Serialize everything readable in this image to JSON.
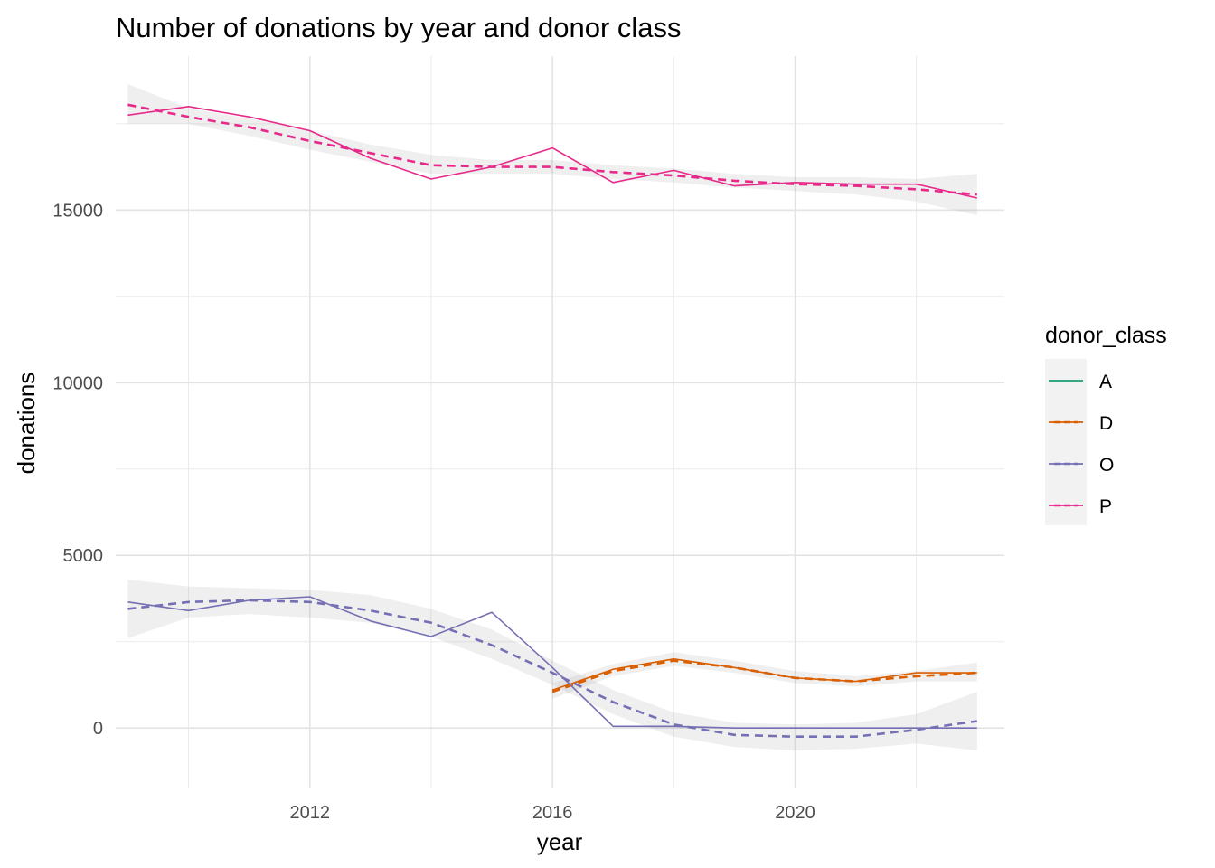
{
  "chart_data": {
    "type": "line",
    "title": "Number of donations by year and donor class",
    "xlabel": "year",
    "ylabel": "donations",
    "xlim": [
      2008.8,
      2023.45
    ],
    "ylim": [
      -1750,
      19460
    ],
    "x_ticks": [
      2012,
      2016,
      2020
    ],
    "x_minor": [
      2010,
      2014,
      2018,
      2022
    ],
    "y_ticks": [
      0,
      5000,
      10000,
      15000
    ],
    "y_minor": [
      2500,
      7500,
      12500,
      17500
    ],
    "grid": true,
    "legend": {
      "title": "donor_class",
      "position": "right",
      "entries": [
        {
          "label": "A",
          "color": "#1b9e77"
        },
        {
          "label": "D",
          "color": "#d95f02"
        },
        {
          "label": "O",
          "color": "#7570b3"
        },
        {
          "label": "P",
          "color": "#e7298a"
        }
      ]
    },
    "series": [
      {
        "name": "D",
        "color": "#d95f02",
        "x": [
          2016,
          2017,
          2018,
          2019,
          2020,
          2021,
          2022,
          2023
        ],
        "values": [
          1100,
          1700,
          2000,
          1750,
          1450,
          1350,
          1600,
          1600
        ],
        "smooth": [
          1050,
          1650,
          1950,
          1750,
          1450,
          1350,
          1500,
          1600
        ],
        "ci_lower": [
          850,
          1500,
          1800,
          1600,
          1300,
          1200,
          1350,
          1350
        ],
        "ci_upper": [
          1300,
          1850,
          2200,
          1950,
          1650,
          1500,
          1650,
          1900
        ]
      },
      {
        "name": "O",
        "color": "#7570b3",
        "x": [
          2009,
          2010,
          2011,
          2012,
          2013,
          2014,
          2015,
          2016,
          2017,
          2018,
          2019,
          2020,
          2021,
          2022,
          2023
        ],
        "values": [
          3650,
          3400,
          3700,
          3800,
          3100,
          2650,
          3350,
          1750,
          50,
          50,
          0,
          0,
          0,
          0,
          0
        ],
        "smooth": [
          3450,
          3650,
          3700,
          3650,
          3400,
          3050,
          2400,
          1600,
          750,
          100,
          -200,
          -250,
          -250,
          -50,
          200
        ],
        "ci_lower": [
          2600,
          3200,
          3300,
          3200,
          3050,
          2650,
          2000,
          1250,
          400,
          -250,
          -550,
          -650,
          -600,
          -450,
          -650
        ],
        "ci_upper": [
          4300,
          4100,
          4050,
          4000,
          3850,
          3450,
          2850,
          1950,
          1100,
          450,
          150,
          100,
          150,
          400,
          1050
        ]
      },
      {
        "name": "P",
        "color": "#e7298a",
        "x": [
          2009,
          2010,
          2011,
          2012,
          2013,
          2014,
          2015,
          2016,
          2017,
          2018,
          2019,
          2020,
          2021,
          2022,
          2023
        ],
        "values": [
          17750,
          18000,
          17700,
          17300,
          16500,
          15900,
          16250,
          16800,
          15800,
          16150,
          15700,
          15800,
          15750,
          15750,
          15350
        ],
        "smooth": [
          18050,
          17700,
          17400,
          17000,
          16650,
          16300,
          16250,
          16250,
          16100,
          16000,
          15850,
          15750,
          15700,
          15600,
          15450
        ],
        "ci_lower": [
          17500,
          17500,
          17150,
          16750,
          16400,
          16050,
          16050,
          16050,
          15900,
          15800,
          15650,
          15550,
          15450,
          15250,
          14850
        ],
        "ci_upper": [
          18650,
          17950,
          17650,
          17300,
          16900,
          16600,
          16450,
          16450,
          16300,
          16200,
          16050,
          15950,
          15950,
          15900,
          16050
        ]
      }
    ]
  }
}
